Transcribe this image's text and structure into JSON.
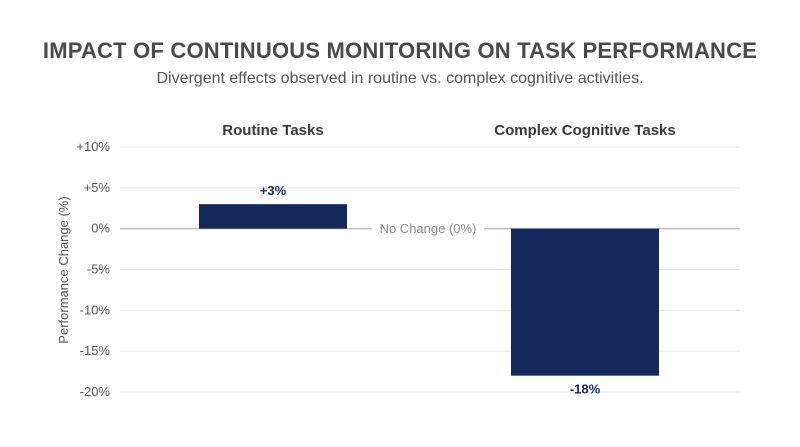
{
  "chart_data": {
    "type": "bar",
    "title": "IMPACT OF CONTINUOUS MONITORING ON TASK PERFORMANCE",
    "subtitle": "Divergent effects observed in routine vs. complex cognitive activities.",
    "categories": [
      "Routine Tasks",
      "Complex Cognitive Tasks"
    ],
    "values": [
      3,
      -18
    ],
    "value_labels": [
      "+3%",
      "-18%"
    ],
    "ylabel": "Performance Change (%)",
    "ylim": [
      -20,
      10
    ],
    "yticks": [
      10,
      5,
      0,
      -5,
      -10,
      -15,
      -20
    ],
    "ytick_labels": [
      "+10%",
      "+5%",
      "0%",
      "-5%",
      "-10%",
      "-15%",
      "-20%"
    ],
    "baseline_label": "No Change (0%)",
    "grid": true,
    "legend": "none",
    "colors": {
      "bar": "#14285c",
      "label": "#14285c",
      "grid": "#e6e6e6",
      "zero": "#bdbdbd"
    }
  }
}
